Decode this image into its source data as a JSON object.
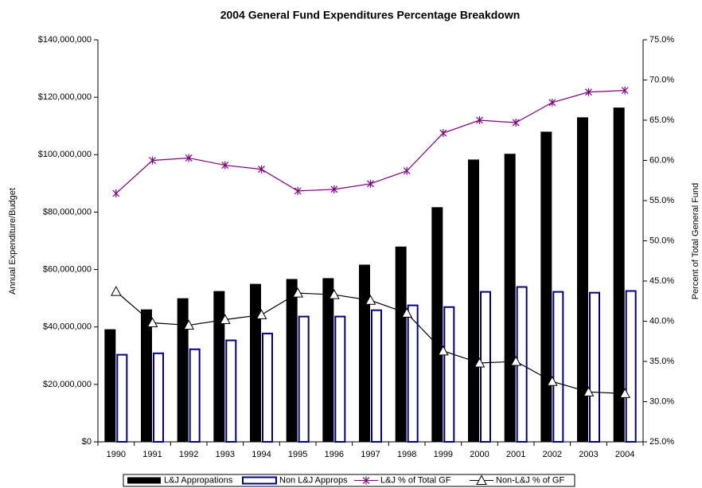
{
  "chart_data": {
    "type": "bar",
    "title": "2004 General Fund Expenditures Percentage Breakdown",
    "y_label": "Annual Expenditure/Budget",
    "y2_label": "Percent of Total General Fund",
    "categories": [
      "1990",
      "1991",
      "1992",
      "1993",
      "1994",
      "1995",
      "1996",
      "1997",
      "1998",
      "1999",
      "2000",
      "2001",
      "2002",
      "2003",
      "2004"
    ],
    "series": [
      {
        "name": "L&J Appropations",
        "type": "bar",
        "fill": "#000000",
        "color": "#000000",
        "values": [
          39200000,
          46100000,
          50000000,
          52500000,
          55000000,
          56700000,
          57000000,
          61700000,
          68000000,
          81700000,
          98300000,
          100300000,
          108000000,
          113000000,
          116400000
        ]
      },
      {
        "name": "Non L&J Approps",
        "type": "bar",
        "fill": "#ffffff",
        "color": "#000080",
        "values": [
          30600000,
          31100000,
          32500000,
          35600000,
          38000000,
          43900000,
          43900000,
          46100000,
          47800000,
          47200000,
          52500000,
          54200000,
          52500000,
          52200000,
          52800000
        ]
      },
      {
        "name": "L&J % of Total GF",
        "type": "line",
        "marker": "asterisk",
        "color": "#800080",
        "axis": "y2",
        "values": [
          55.9,
          60.0,
          60.3,
          59.4,
          58.9,
          56.2,
          56.4,
          57.1,
          58.7,
          63.4,
          65.0,
          64.7,
          67.2,
          68.5,
          68.7
        ]
      },
      {
        "name": "Non-L&J % of GF",
        "type": "line",
        "marker": "triangle",
        "color": "#000000",
        "axis": "y2",
        "values": [
          43.7,
          39.8,
          39.5,
          40.2,
          40.8,
          43.5,
          43.3,
          42.6,
          41.0,
          36.3,
          34.8,
          35.0,
          32.5,
          31.2,
          31.0
        ]
      }
    ],
    "ylim": [
      0,
      140000000
    ],
    "yticks": [
      {
        "value": 0,
        "label": "$0"
      },
      {
        "value": 20000000,
        "label": "$20,000,000"
      },
      {
        "value": 40000000,
        "label": "$40,000,000"
      },
      {
        "value": 60000000,
        "label": "$60,000,000"
      },
      {
        "value": 80000000,
        "label": "$80,000,000"
      },
      {
        "value": 100000000,
        "label": "$100,000,000"
      },
      {
        "value": 120000000,
        "label": "$120,000,000"
      },
      {
        "value": 140000000,
        "label": "$140,000,000"
      }
    ],
    "y2lim": [
      25,
      75
    ],
    "y2ticks": [
      {
        "value": 25,
        "label": "25.0%"
      },
      {
        "value": 30,
        "label": "30.0%"
      },
      {
        "value": 35,
        "label": "35.0%"
      },
      {
        "value": 40,
        "label": "40.0%"
      },
      {
        "value": 45,
        "label": "45.0%"
      },
      {
        "value": 50,
        "label": "50.0%"
      },
      {
        "value": 55,
        "label": "55.0%"
      },
      {
        "value": 60,
        "label": "60.0%"
      },
      {
        "value": 65,
        "label": "65.0%"
      },
      {
        "value": 70,
        "label": "70.0%"
      },
      {
        "value": 75,
        "label": "75.0%"
      }
    ],
    "grid": false,
    "legend": "bottom"
  }
}
